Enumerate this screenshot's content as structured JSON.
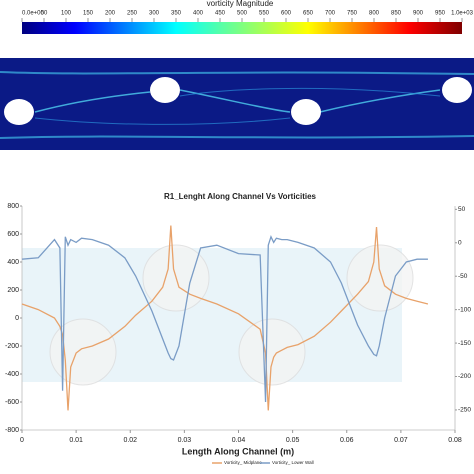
{
  "colorbar": {
    "title": "vorticity Magnitude",
    "ticks": [
      {
        "value": 0,
        "label": "0.0e+00"
      },
      50,
      100,
      150,
      200,
      250,
      300,
      350,
      400,
      450,
      500,
      550,
      600,
      650,
      700,
      750,
      800,
      850,
      900,
      950,
      {
        "value": 1000,
        "label": "1.0e+03"
      }
    ],
    "lim": [
      0,
      1000
    ]
  },
  "chart_data": {
    "type": "line",
    "title": "R1_Lenght Along Channel Vs Vorticities",
    "x_label": "Length Along Channel (m)",
    "x": [
      0,
      0.003,
      0.006,
      0.007,
      0.0075,
      0.008,
      0.0085,
      0.009,
      0.01,
      0.011,
      0.013,
      0.016,
      0.019,
      0.021,
      0.024,
      0.026,
      0.027,
      0.0275,
      0.028,
      0.029,
      0.031,
      0.033,
      0.036,
      0.04,
      0.044,
      0.045,
      0.0455,
      0.046,
      0.0465,
      0.047,
      0.048,
      0.049,
      0.051,
      0.054,
      0.057,
      0.059,
      0.062,
      0.064,
      0.065,
      0.0655,
      0.066,
      0.067,
      0.069,
      0.071,
      0.073,
      0.075
    ],
    "series": [
      {
        "name": "Vorticity_ Midplane",
        "color": "#e8a26a",
        "values": [
          100,
          60,
          0,
          -60,
          -120,
          -300,
          -660,
          -350,
          -250,
          -220,
          -200,
          -150,
          -60,
          20,
          120,
          220,
          350,
          660,
          350,
          220,
          170,
          140,
          100,
          30,
          -80,
          -250,
          -660,
          -350,
          -280,
          -250,
          -230,
          -210,
          -190,
          -130,
          -30,
          50,
          170,
          260,
          400,
          650,
          350,
          230,
          170,
          140,
          120,
          100
        ]
      },
      {
        "name": "Vorticity_ Lower Wall",
        "color": "#7a9cc6",
        "values": [
          420,
          430,
          560,
          500,
          -520,
          580,
          520,
          560,
          540,
          570,
          560,
          520,
          430,
          300,
          50,
          -150,
          -250,
          -290,
          -300,
          -200,
          250,
          500,
          520,
          460,
          450,
          -600,
          520,
          580,
          540,
          570,
          560,
          560,
          540,
          500,
          400,
          250,
          -50,
          -200,
          -260,
          -270,
          -200,
          0,
          300,
          400,
          420,
          420
        ]
      }
    ],
    "xlim": [
      0,
      0.08
    ],
    "xticks": [
      0,
      0.01,
      0.02,
      0.03,
      0.04,
      0.05,
      0.06,
      0.07,
      0.08
    ],
    "ylim": [
      -800,
      800
    ],
    "yticks": [
      -800,
      -600,
      -400,
      -200,
      0,
      200,
      400,
      600,
      800
    ],
    "y2lim": [
      -280,
      55
    ],
    "y2ticks": [
      -250,
      -200,
      -150,
      -100,
      -50,
      0,
      50
    ],
    "grid": false,
    "legend": "bottom"
  }
}
